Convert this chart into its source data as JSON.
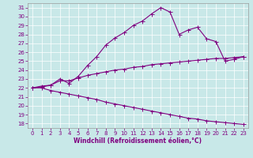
{
  "xlabel": "Windchill (Refroidissement éolien,°C)",
  "background_color": "#c8e8e8",
  "line_color": "#800080",
  "grid_color": "#b0d0d0",
  "x": [
    0,
    1,
    2,
    3,
    4,
    5,
    6,
    7,
    8,
    9,
    10,
    11,
    12,
    13,
    14,
    15,
    16,
    17,
    18,
    19,
    20,
    21,
    22,
    23
  ],
  "ylim": [
    17.5,
    31.5
  ],
  "xlim": [
    -0.5,
    23.5
  ],
  "yticks": [
    18,
    19,
    20,
    21,
    22,
    23,
    24,
    25,
    26,
    27,
    28,
    29,
    30,
    31
  ],
  "xticks": [
    0,
    1,
    2,
    3,
    4,
    5,
    6,
    7,
    8,
    9,
    10,
    11,
    12,
    13,
    14,
    15,
    16,
    17,
    18,
    19,
    20,
    21,
    22,
    23
  ],
  "line1": [
    22.0,
    22.2,
    22.3,
    23.0,
    22.5,
    23.3,
    24.5,
    25.5,
    26.8,
    27.6,
    28.2,
    29.0,
    29.5,
    30.3,
    31.0,
    30.5,
    28.0,
    28.5,
    28.8,
    27.5,
    27.2,
    25.0,
    25.2,
    25.5
  ],
  "line2": [
    22.0,
    22.1,
    22.3,
    22.8,
    22.8,
    23.1,
    23.4,
    23.6,
    23.8,
    24.0,
    24.1,
    24.3,
    24.4,
    24.6,
    24.7,
    24.8,
    24.9,
    25.0,
    25.1,
    25.2,
    25.3,
    25.3,
    25.4,
    25.5
  ],
  "line3": [
    22.0,
    22.0,
    21.7,
    21.5,
    21.3,
    21.1,
    20.9,
    20.7,
    20.4,
    20.2,
    20.0,
    19.8,
    19.6,
    19.4,
    19.2,
    19.0,
    18.8,
    18.6,
    18.5,
    18.3,
    18.2,
    18.1,
    18.0,
    17.9
  ],
  "tick_fontsize": 5,
  "xlabel_fontsize": 5.5
}
